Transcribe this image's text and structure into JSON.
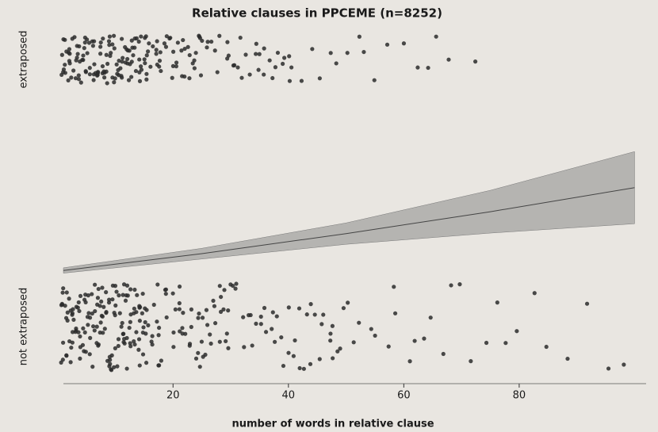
{
  "chart_data": {
    "type": "scatter",
    "title": "Relative clauses in PPCEME (n=8252)",
    "x_label": "number of words in relative clause",
    "xlim": [
      1,
      102
    ],
    "xticks": [
      20,
      40,
      60,
      80
    ],
    "ylim": [
      0,
      1
    ],
    "color": "#2b2b2b",
    "series": [
      {
        "name": "extraposed",
        "y": 1,
        "values": [
          1,
          1,
          1,
          1,
          1,
          1,
          1,
          1,
          2,
          2,
          2,
          2,
          2,
          2,
          2,
          2,
          3,
          3,
          3,
          3,
          3,
          3,
          3,
          3,
          4,
          4,
          4,
          4,
          4,
          4,
          4,
          4,
          5,
          5,
          5,
          5,
          5,
          5,
          5,
          5,
          6,
          6,
          6,
          6,
          6,
          6,
          6,
          6,
          7,
          7,
          7,
          7,
          7,
          7,
          7,
          7,
          8,
          8,
          8,
          8,
          8,
          8,
          8,
          8,
          9,
          9,
          9,
          9,
          9,
          9,
          9,
          9,
          10,
          10,
          10,
          10,
          10,
          10,
          10,
          10,
          11,
          11,
          11,
          11,
          11,
          11,
          11,
          11,
          12,
          12,
          12,
          12,
          12,
          12,
          12,
          12,
          13,
          13,
          13,
          13,
          13,
          13,
          13,
          13,
          14,
          14,
          14,
          14,
          14,
          14,
          14,
          14,
          15,
          15,
          15,
          15,
          15,
          15,
          15,
          15,
          16,
          16,
          16,
          16,
          17,
          17,
          17,
          17,
          18,
          18,
          18,
          18,
          19,
          19,
          19,
          19,
          20,
          20,
          20,
          20,
          21,
          21,
          21,
          21,
          22,
          22,
          22,
          22,
          23,
          23,
          23,
          23,
          24,
          24,
          24,
          24,
          25,
          25,
          25,
          25,
          26,
          26,
          27,
          27,
          28,
          28,
          29,
          29,
          30,
          30,
          31,
          31,
          32,
          32,
          33,
          33,
          34,
          34,
          35,
          35,
          36,
          36,
          37,
          37,
          38,
          38,
          39,
          39,
          40,
          40,
          41,
          42,
          44,
          45,
          47,
          48,
          50,
          52,
          53,
          55,
          57,
          60,
          62,
          64,
          66,
          68,
          72
        ]
      },
      {
        "name": "not extraposed",
        "y": 0,
        "values": [
          1,
          1,
          1,
          1,
          1,
          1,
          1,
          1,
          1,
          1,
          2,
          2,
          2,
          2,
          2,
          2,
          2,
          2,
          2,
          2,
          3,
          3,
          3,
          3,
          3,
          3,
          3,
          3,
          3,
          3,
          4,
          4,
          4,
          4,
          4,
          4,
          4,
          4,
          4,
          4,
          5,
          5,
          5,
          5,
          5,
          5,
          5,
          5,
          5,
          5,
          6,
          6,
          6,
          6,
          6,
          6,
          6,
          6,
          6,
          6,
          7,
          7,
          7,
          7,
          7,
          7,
          7,
          7,
          7,
          7,
          8,
          8,
          8,
          8,
          8,
          8,
          8,
          8,
          8,
          8,
          9,
          9,
          9,
          9,
          9,
          9,
          9,
          9,
          9,
          9,
          10,
          10,
          10,
          10,
          10,
          10,
          10,
          10,
          10,
          10,
          11,
          11,
          11,
          11,
          11,
          11,
          11,
          11,
          11,
          11,
          12,
          12,
          12,
          12,
          12,
          12,
          12,
          12,
          12,
          12,
          13,
          13,
          13,
          13,
          13,
          13,
          13,
          13,
          13,
          13,
          14,
          14,
          14,
          14,
          14,
          14,
          14,
          14,
          14,
          14,
          15,
          15,
          15,
          15,
          15,
          15,
          15,
          15,
          15,
          15,
          16,
          16,
          16,
          16,
          17,
          17,
          17,
          17,
          18,
          18,
          18,
          18,
          19,
          19,
          19,
          19,
          20,
          20,
          20,
          20,
          21,
          21,
          21,
          21,
          22,
          22,
          22,
          22,
          23,
          23,
          23,
          23,
          24,
          24,
          24,
          24,
          25,
          25,
          25,
          25,
          26,
          26,
          26,
          26,
          27,
          27,
          27,
          27,
          28,
          28,
          28,
          28,
          29,
          29,
          29,
          29,
          30,
          30,
          30,
          30,
          31,
          31,
          32,
          32,
          33,
          33,
          34,
          34,
          35,
          35,
          36,
          36,
          37,
          37,
          38,
          38,
          39,
          39,
          40,
          40,
          41,
          41,
          42,
          42,
          43,
          43,
          44,
          44,
          45,
          45,
          46,
          46,
          47,
          47,
          48,
          48,
          49,
          49,
          50,
          50,
          51,
          52,
          54,
          55,
          57,
          58,
          59,
          61,
          62,
          64,
          65,
          67,
          68,
          70,
          72,
          74,
          76,
          78,
          80,
          83,
          85,
          88,
          92,
          95,
          98
        ]
      }
    ],
    "fit": {
      "x": [
        1,
        25,
        50,
        75,
        100
      ],
      "values": [
        0.21,
        0.273,
        0.348,
        0.43,
        0.52
      ],
      "lower": [
        0.2,
        0.253,
        0.308,
        0.35,
        0.385
      ],
      "upper": [
        0.22,
        0.293,
        0.388,
        0.51,
        0.655
      ]
    }
  }
}
